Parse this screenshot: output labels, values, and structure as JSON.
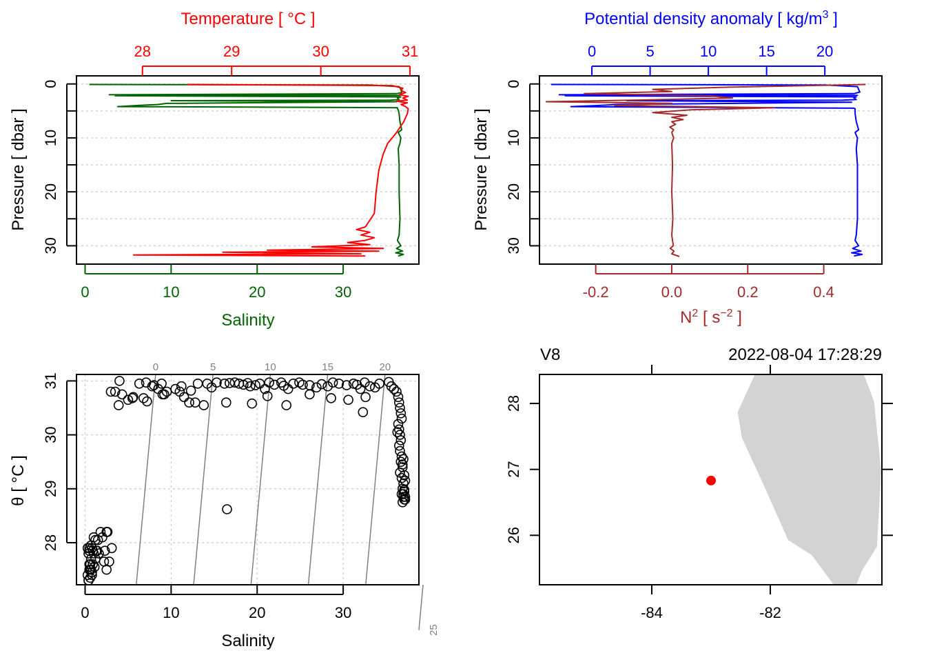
{
  "colors": {
    "temperature": "#ff0000",
    "salinity": "#006400",
    "density": "#0000ff",
    "n2": "#a52a2a",
    "isopycnal": "#808080",
    "grid": "#d3d3d3",
    "land": "#d3d3d3",
    "station": "#ff0000",
    "axis": "#000000"
  },
  "chart_data": [
    {
      "id": "profile-ts",
      "type": "line",
      "title": "Temperature [ °C ]",
      "xlabel": "Salinity",
      "ylabel": "Pressure [ dbar ]",
      "top_axis": {
        "label": "Temperature [ °C ]",
        "ticks": [
          28,
          29,
          30,
          31
        ],
        "range": [
          27.26,
          31.1
        ]
      },
      "bottom_axis": {
        "label": "Salinity",
        "ticks": [
          0,
          10,
          20,
          30
        ],
        "range": [
          -1.0,
          38.8
        ]
      },
      "y_axis": {
        "ticks": [
          0,
          10,
          20,
          30
        ],
        "minor_ticks": [
          5,
          15,
          25
        ],
        "range": [
          33.4,
          -1.5
        ],
        "reversed": true
      },
      "grid": true,
      "series": [
        {
          "name": "Salinity",
          "axis": "bottom",
          "pressure": [
            0.1,
            0.2,
            0.5,
            1.0,
            1.6,
            1.8,
            2.0,
            2.1,
            2.2,
            2.4,
            2.6,
            2.9,
            3.0,
            3.1,
            3.3,
            3.6,
            3.8,
            4.0,
            4.2,
            4.4,
            4.6,
            4.8,
            5.5,
            7,
            8.5,
            9,
            10,
            11,
            12,
            15,
            20,
            25,
            28,
            29,
            30,
            30.5,
            31,
            31.3,
            31.6,
            31.9
          ],
          "values": [
            0.5,
            33,
            36.5,
            36.7,
            36.8,
            36.2,
            2.8,
            36.6,
            3.5,
            36.7,
            36.3,
            36.5,
            35.5,
            10,
            36.2,
            9.5,
            8.5,
            6,
            3.8,
            36.3,
            36.3,
            36.4,
            36.5,
            36.6,
            36.8,
            36.4,
            36.7,
            36.6,
            36.4,
            36.5,
            36.5,
            36.6,
            36.5,
            36.3,
            36.7,
            36.2,
            36.9,
            36.1,
            37.0,
            36.4
          ]
        },
        {
          "name": "Temperature",
          "axis": "top",
          "pressure": [
            0.1,
            0.3,
            0.8,
            1.2,
            1.6,
            2.0,
            2.3,
            2.6,
            3.0,
            3.2,
            3.5,
            3.8,
            4.2,
            4.6,
            5.5,
            7,
            9,
            10,
            11,
            13,
            16,
            20,
            24,
            26.5,
            27,
            27.5,
            28,
            28.5,
            29,
            29.4,
            29.8,
            30.2,
            30.5,
            30.8,
            31.0,
            31.2,
            31.5,
            31.7,
            31.9
          ],
          "values": [
            28.5,
            30.8,
            30.92,
            30.9,
            30.95,
            30.88,
            30.98,
            30.92,
            30.97,
            30.85,
            30.97,
            30.9,
            30.95,
            30.98,
            30.97,
            30.93,
            30.85,
            30.8,
            30.75,
            30.7,
            30.65,
            30.62,
            30.6,
            30.5,
            30.4,
            30.55,
            30.45,
            30.6,
            30.5,
            30.3,
            30.55,
            29.9,
            30.7,
            29.4,
            30.65,
            28.9,
            30.45,
            27.9,
            30.5
          ]
        }
      ]
    },
    {
      "id": "profile-density-n2",
      "type": "line",
      "title": "Potential density anomaly [ kg/m3 ]",
      "xlabel": "N2 [ s-2 ]",
      "ylabel": "Pressure [ dbar ]",
      "top_axis": {
        "label": "Potential density anomaly [ kg/m3 ]",
        "ticks": [
          0,
          5,
          10,
          15,
          20
        ],
        "range": [
          -4.5,
          24.9
        ]
      },
      "bottom_axis": {
        "label": "N2 [ s-2 ]",
        "ticks": [
          -0.2,
          0.0,
          0.2,
          0.4
        ],
        "range": [
          -0.348,
          0.553
        ]
      },
      "y_axis": {
        "ticks": [
          0,
          10,
          20,
          30
        ],
        "minor_ticks": [
          5,
          15,
          25
        ],
        "range": [
          33.4,
          -1.5
        ],
        "reversed": true
      },
      "grid": true,
      "series": [
        {
          "name": "Potential density anomaly",
          "axis": "top",
          "pressure": [
            0.1,
            0.2,
            0.5,
            1.0,
            1.5,
            1.8,
            2.0,
            2.1,
            2.2,
            2.4,
            2.6,
            2.9,
            3.0,
            3.1,
            3.4,
            3.8,
            4.0,
            4.2,
            4.5,
            4.6,
            5.5,
            7,
            8.5,
            9,
            10,
            12,
            15,
            20,
            25,
            28,
            29,
            30,
            30.5,
            31,
            31.3,
            31.6,
            31.9
          ],
          "values": [
            -3.5,
            20,
            22.8,
            22.9,
            23.0,
            22.5,
            -2.8,
            22.8,
            -2.3,
            22.7,
            22.5,
            22.7,
            21.5,
            3,
            22.3,
            2.2,
            0.5,
            -1.8,
            22.5,
            22.6,
            22.6,
            22.7,
            22.9,
            22.6,
            22.8,
            22.7,
            22.8,
            22.8,
            22.8,
            22.7,
            22.6,
            22.9,
            22.4,
            23.1,
            22.3,
            23.2,
            22.5
          ]
        },
        {
          "name": "N2",
          "axis": "bottom",
          "pressure": [
            0.1,
            0.6,
            1.0,
            1.4,
            1.8,
            2.2,
            2.6,
            3.0,
            3.3,
            3.6,
            4.0,
            4.4,
            4.8,
            5.3,
            5.8,
            6.2,
            6.6,
            7.0,
            7.5,
            8,
            8.5,
            9,
            10,
            11,
            15,
            20,
            25,
            28,
            30,
            30.5,
            31,
            31.5,
            32.0
          ],
          "values": [
            0.51,
            0.15,
            -0.05,
            0.0,
            -0.23,
            0.1,
            0.16,
            -0.1,
            -0.33,
            0.0,
            -0.15,
            0.27,
            0.05,
            -0.05,
            0.04,
            0.0,
            0.03,
            0.0,
            0.01,
            -0.005,
            0.005,
            0.0,
            0.005,
            0.0,
            0.002,
            0.0,
            0.003,
            0.0,
            0.004,
            -0.004,
            0.006,
            0.0,
            0.02
          ]
        }
      ]
    },
    {
      "id": "ts-diagram",
      "type": "scatter",
      "xlabel": "Salinity",
      "ylabel": "θ [ °C ]",
      "x_axis": {
        "ticks": [
          0,
          10,
          20,
          30
        ],
        "range": [
          -1.0,
          38.8
        ]
      },
      "y_axis": {
        "ticks": [
          28,
          29,
          30,
          31
        ],
        "range": [
          27.22,
          31.12
        ]
      },
      "grid": true,
      "isopycnals": {
        "levels": [
          0,
          5,
          10,
          15,
          20,
          25
        ],
        "labels": [
          "0",
          "5",
          "10",
          "15",
          "20",
          "25"
        ]
      },
      "points": {
        "salinity": [
          0.3,
          0.4,
          0.5,
          0.6,
          0.7,
          0.4,
          0.5,
          0.6,
          0.8,
          0.9,
          0.3,
          0.5,
          0.7,
          1.0,
          1.2,
          0.4,
          0.6,
          0.8,
          1.1,
          0.5,
          0.7,
          0.9,
          1.3,
          1.6,
          2.0,
          2.5,
          1.5,
          1.8,
          2.3,
          2.6,
          3.1,
          1.0,
          1.2,
          2.8,
          2.5,
          0.8,
          1.4,
          2.2,
          3.0,
          3.5,
          4.3,
          5.0,
          4.0,
          3.9,
          5.6,
          6.8,
          6.3,
          7.1,
          7.8,
          8.0,
          8.5,
          8.9,
          9.5,
          9.2,
          10.5,
          11.0,
          11.5,
          11.2,
          12.3,
          13.1,
          12.8,
          14.2,
          14.7,
          15.3,
          16.2,
          16.8,
          17.4,
          17.9,
          18.4,
          18.9,
          19.2,
          19.8,
          20.3,
          20.9,
          21.4,
          22.0,
          22.8,
          23.1,
          23.6,
          24.2,
          24.9,
          25.3,
          26.1,
          26.9,
          27.5,
          28.2,
          28.8,
          29.5,
          30.4,
          31.2,
          31.6,
          32.0,
          32.5,
          33.1,
          33.7,
          34.2,
          5.5,
          7.2,
          9.0,
          12.1,
          13.8,
          16.4,
          19.4,
          21.2,
          23.4,
          26.1,
          28.6,
          30.6,
          32.3,
          32.6,
          35.3,
          35.6,
          35.9,
          36.2,
          36.4,
          36.5,
          36.6,
          36.7,
          36.8,
          36.4,
          36.5,
          36.6,
          36.7,
          36.3,
          36.5,
          36.6,
          36.8,
          36.7,
          36.9,
          36.6,
          36.8,
          37.0,
          36.9,
          37.1,
          36.8,
          37.0,
          37.2,
          36.9,
          37.1,
          37.0,
          37.2,
          37.1,
          36.9,
          37.0,
          37.2,
          37.1,
          16.5
        ],
        "theta": [
          27.4,
          27.3,
          27.5,
          27.6,
          27.7,
          27.8,
          27.9,
          27.5,
          27.4,
          27.6,
          27.9,
          27.6,
          27.5,
          27.8,
          27.7,
          27.3,
          27.35,
          27.45,
          27.55,
          27.85,
          27.95,
          27.85,
          27.85,
          27.8,
          28.1,
          28.2,
          28.05,
          28.2,
          27.85,
          28.2,
          27.9,
          28.1,
          28.05,
          27.65,
          27.5,
          27.9,
          27.85,
          27.65,
          30.8,
          30.8,
          30.75,
          30.65,
          31.0,
          30.55,
          30.7,
          30.68,
          30.95,
          30.97,
          30.9,
          30.92,
          30.85,
          30.95,
          30.8,
          30.75,
          30.85,
          30.8,
          30.7,
          30.9,
          30.82,
          30.95,
          30.6,
          30.95,
          30.88,
          30.97,
          30.95,
          30.96,
          30.97,
          30.95,
          30.93,
          30.96,
          30.9,
          30.92,
          30.95,
          30.85,
          30.97,
          30.93,
          30.97,
          30.91,
          30.85,
          30.95,
          30.97,
          30.93,
          30.92,
          30.88,
          30.94,
          30.9,
          30.97,
          30.95,
          30.92,
          30.95,
          30.93,
          30.85,
          30.97,
          30.9,
          30.88,
          30.95,
          30.68,
          30.62,
          30.75,
          30.6,
          30.55,
          30.6,
          30.58,
          30.72,
          30.55,
          30.75,
          30.68,
          30.65,
          30.42,
          30.7,
          30.98,
          30.9,
          30.85,
          30.8,
          30.7,
          30.6,
          30.5,
          30.4,
          30.3,
          30.2,
          30.1,
          30.0,
          29.9,
          30.05,
          29.8,
          29.7,
          29.6,
          29.5,
          29.4,
          29.3,
          29.2,
          29.1,
          29.0,
          28.95,
          28.9,
          28.85,
          28.8,
          28.75,
          28.8,
          28.9,
          28.85,
          29.25,
          29.45,
          29.55,
          29.15,
          28.98,
          28.62
        ]
      }
    },
    {
      "id": "station-map",
      "type": "scatter",
      "title_left": "V8",
      "title_right": "2022-08-04 17:28:29",
      "x_axis": {
        "ticks": [
          -84,
          -82
        ],
        "labels": [
          "-84",
          "-82"
        ],
        "range": [
          -85.895,
          -80.117
        ]
      },
      "y_axis": {
        "ticks": [
          26,
          27,
          28
        ],
        "labels": [
          "26",
          "27",
          "28"
        ],
        "range": [
          25.25,
          28.44
        ]
      },
      "station": {
        "lon": -83.0,
        "lat": 26.83
      },
      "land": {
        "lon": [
          -82.26,
          -82.55,
          -82.48,
          -82.12,
          -81.7,
          -81.3,
          -80.93,
          -80.55,
          -80.45,
          -80.2,
          -80.13,
          -80.25,
          -80.42,
          -80.8,
          -81.14,
          -81.28,
          -81.72,
          -82.26
        ],
        "lat": [
          28.44,
          27.87,
          27.48,
          26.78,
          25.93,
          25.7,
          25.25,
          25.25,
          25.47,
          25.83,
          26.98,
          28.03,
          28.44,
          28.44,
          28.44,
          28.44,
          28.44,
          28.44
        ]
      }
    }
  ]
}
